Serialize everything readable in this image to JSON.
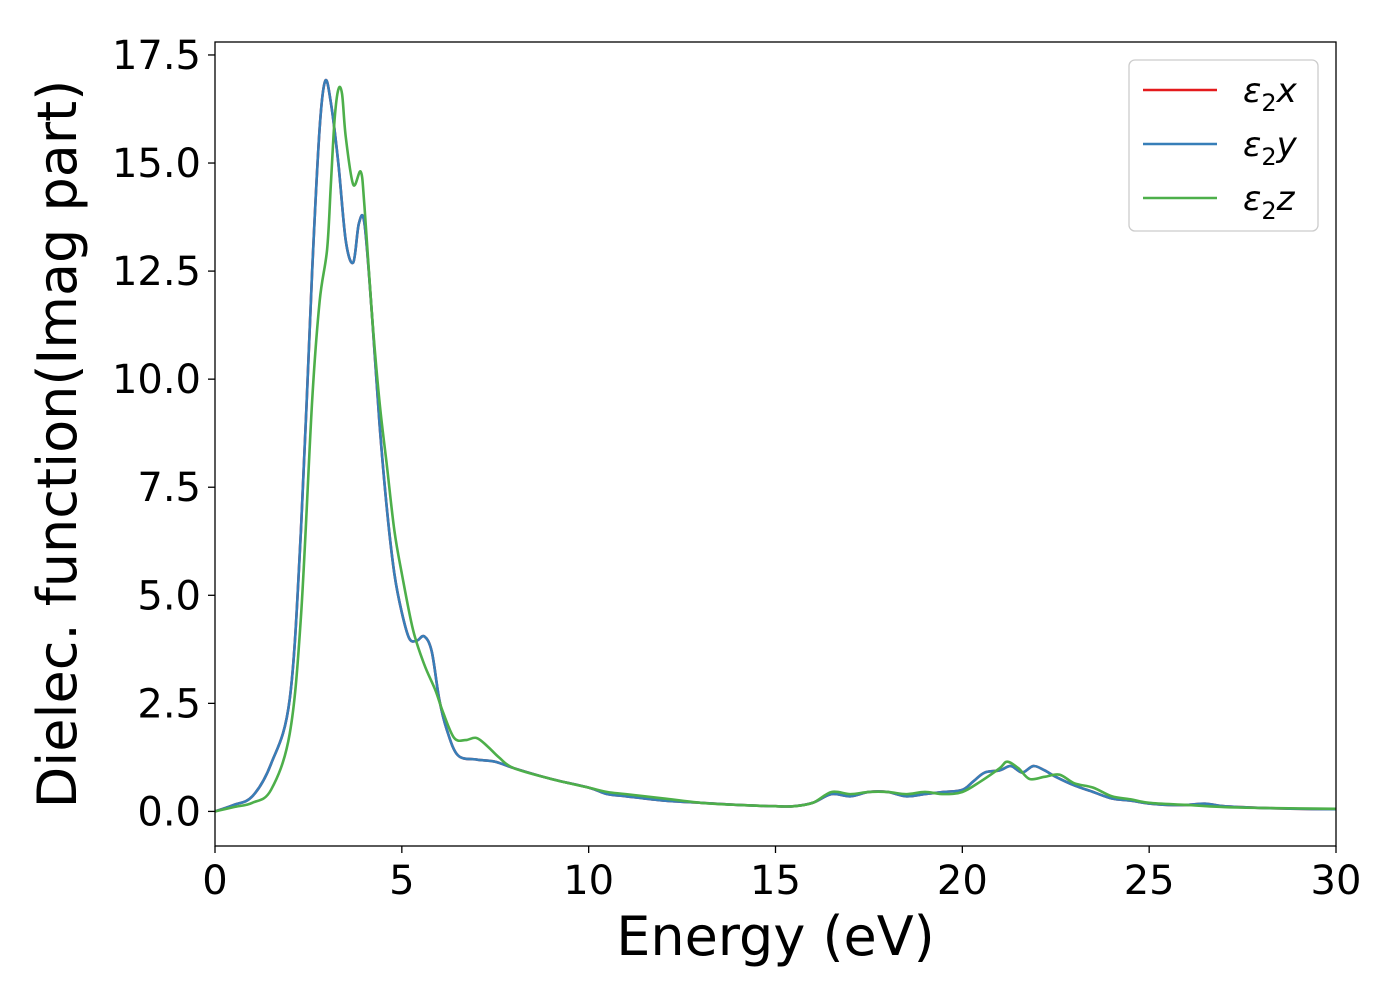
{
  "chart_data": {
    "type": "line",
    "xlabel": "Energy (eV)",
    "ylabel": "Dielec. function(Imag part)",
    "xlim": [
      0,
      30
    ],
    "ylim": [
      -0.8,
      17.8
    ],
    "xticks": [
      0,
      5,
      10,
      15,
      20,
      25,
      30
    ],
    "xtick_labels": [
      "0",
      "5",
      "10",
      "15",
      "20",
      "25",
      "30"
    ],
    "yticks": [
      0,
      2.5,
      5,
      7.5,
      10,
      12.5,
      15,
      17.5
    ],
    "ytick_labels": [
      "0.0",
      "2.5",
      "5.0",
      "7.5",
      "10.0",
      "12.5",
      "15.0",
      "17.5"
    ],
    "grid": false,
    "legend_position": "top-right",
    "series": [
      {
        "name": "ε2x",
        "label_base": "ε",
        "label_sub": "2",
        "label_tail": "x",
        "color": "#e41a1c",
        "x": [
          0,
          0.5,
          1.0,
          1.5,
          2.0,
          2.3,
          2.6,
          2.8,
          2.95,
          3.1,
          3.3,
          3.5,
          3.7,
          3.85,
          4.0,
          4.2,
          4.4,
          4.6,
          4.8,
          5.0,
          5.2,
          5.4,
          5.6,
          5.8,
          6.0,
          6.2,
          6.5,
          7.0,
          7.5,
          8.0,
          9.0,
          10.0,
          10.5,
          11.0,
          12.0,
          13.0,
          14.0,
          15.0,
          15.5,
          16.0,
          16.5,
          17.0,
          17.5,
          18.0,
          18.5,
          19.0,
          19.5,
          20.0,
          20.3,
          20.6,
          21.0,
          21.3,
          21.6,
          21.9,
          22.2,
          22.5,
          23.0,
          23.5,
          24.0,
          24.5,
          25.0,
          25.5,
          26.0,
          26.5,
          27.0,
          28.0,
          29.0,
          30.0
        ],
        "y": [
          0,
          0.15,
          0.35,
          1.1,
          2.6,
          6.5,
          12.5,
          15.8,
          16.9,
          16.4,
          15.0,
          13.2,
          12.7,
          13.6,
          13.6,
          11.5,
          9.0,
          7.0,
          5.5,
          4.6,
          4.0,
          3.95,
          4.05,
          3.7,
          2.6,
          1.9,
          1.3,
          1.2,
          1.15,
          1.0,
          0.75,
          0.55,
          0.4,
          0.35,
          0.25,
          0.2,
          0.15,
          0.12,
          0.12,
          0.2,
          0.4,
          0.35,
          0.45,
          0.45,
          0.35,
          0.4,
          0.45,
          0.5,
          0.7,
          0.9,
          0.95,
          1.05,
          0.9,
          1.05,
          0.95,
          0.8,
          0.6,
          0.45,
          0.3,
          0.25,
          0.18,
          0.15,
          0.15,
          0.18,
          0.12,
          0.08,
          0.06,
          0.05
        ]
      },
      {
        "name": "ε2y",
        "label_base": "ε",
        "label_sub": "2",
        "label_tail": "y",
        "color": "#377eb8",
        "x": [
          0,
          0.5,
          1.0,
          1.5,
          2.0,
          2.3,
          2.6,
          2.8,
          2.95,
          3.1,
          3.3,
          3.5,
          3.7,
          3.85,
          4.0,
          4.2,
          4.4,
          4.6,
          4.8,
          5.0,
          5.2,
          5.4,
          5.6,
          5.8,
          6.0,
          6.2,
          6.5,
          7.0,
          7.5,
          8.0,
          9.0,
          10.0,
          10.5,
          11.0,
          12.0,
          13.0,
          14.0,
          15.0,
          15.5,
          16.0,
          16.5,
          17.0,
          17.5,
          18.0,
          18.5,
          19.0,
          19.5,
          20.0,
          20.3,
          20.6,
          21.0,
          21.3,
          21.6,
          21.9,
          22.2,
          22.5,
          23.0,
          23.5,
          24.0,
          24.5,
          25.0,
          25.5,
          26.0,
          26.5,
          27.0,
          28.0,
          29.0,
          30.0
        ],
        "y": [
          0,
          0.15,
          0.35,
          1.1,
          2.6,
          6.5,
          12.5,
          15.8,
          16.9,
          16.4,
          15.0,
          13.2,
          12.7,
          13.6,
          13.6,
          11.5,
          9.0,
          7.0,
          5.5,
          4.6,
          4.0,
          3.95,
          4.05,
          3.7,
          2.6,
          1.9,
          1.3,
          1.2,
          1.15,
          1.0,
          0.75,
          0.55,
          0.4,
          0.35,
          0.25,
          0.2,
          0.15,
          0.12,
          0.12,
          0.2,
          0.4,
          0.35,
          0.45,
          0.45,
          0.35,
          0.4,
          0.45,
          0.5,
          0.7,
          0.9,
          0.95,
          1.05,
          0.9,
          1.05,
          0.95,
          0.8,
          0.6,
          0.45,
          0.3,
          0.25,
          0.18,
          0.15,
          0.15,
          0.18,
          0.12,
          0.08,
          0.06,
          0.05
        ]
      },
      {
        "name": "ε2z",
        "label_base": "ε",
        "label_sub": "2",
        "label_tail": "z",
        "color": "#4daf4a",
        "x": [
          0,
          0.5,
          1.0,
          1.5,
          2.0,
          2.3,
          2.6,
          2.8,
          3.0,
          3.1,
          3.2,
          3.3,
          3.4,
          3.5,
          3.7,
          3.9,
          4.0,
          4.2,
          4.4,
          4.6,
          4.8,
          5.0,
          5.3,
          5.6,
          5.9,
          6.1,
          6.4,
          6.7,
          7.0,
          7.3,
          7.6,
          8.0,
          9.0,
          10.0,
          10.5,
          11.0,
          12.0,
          13.0,
          14.0,
          15.0,
          15.5,
          16.0,
          16.5,
          17.0,
          17.5,
          18.0,
          18.5,
          19.0,
          19.5,
          20.0,
          20.5,
          21.0,
          21.2,
          21.5,
          21.8,
          22.2,
          22.6,
          23.0,
          23.5,
          24.0,
          24.5,
          25.0,
          26.0,
          27.0,
          28.0,
          29.0,
          30.0
        ],
        "y": [
          0,
          0.1,
          0.2,
          0.5,
          1.8,
          4.5,
          9.5,
          11.8,
          13.0,
          14.5,
          16.0,
          16.7,
          16.6,
          15.6,
          14.5,
          14.8,
          14.0,
          11.5,
          9.5,
          8.0,
          6.5,
          5.5,
          4.2,
          3.4,
          2.8,
          2.3,
          1.7,
          1.65,
          1.7,
          1.5,
          1.25,
          1.0,
          0.75,
          0.55,
          0.45,
          0.4,
          0.3,
          0.2,
          0.15,
          0.12,
          0.12,
          0.2,
          0.45,
          0.4,
          0.45,
          0.45,
          0.4,
          0.45,
          0.4,
          0.45,
          0.7,
          1.0,
          1.15,
          1.0,
          0.75,
          0.8,
          0.85,
          0.65,
          0.55,
          0.35,
          0.28,
          0.2,
          0.15,
          0.1,
          0.08,
          0.07,
          0.06
        ]
      }
    ]
  }
}
